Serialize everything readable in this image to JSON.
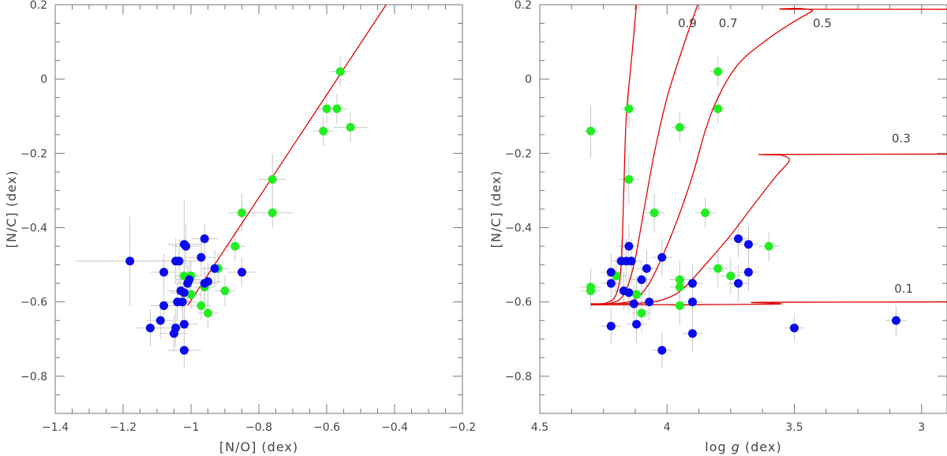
{
  "chart_data": [
    {
      "type": "scatter",
      "name": "left-panel",
      "xlabel": "[N/O] (dex)",
      "ylabel": "[N/C] (dex)",
      "xlim": [
        -1.4,
        -0.2
      ],
      "ylim": [
        -0.9,
        0.2
      ],
      "xticks": [
        -1.4,
        -1.2,
        -1,
        -0.8,
        -0.6,
        -0.4,
        -0.2
      ],
      "xtick_labels": [
        "−1.4",
        "−1.2",
        "−1",
        "−0.8",
        "−0.6",
        "−0.4",
        "−0.2"
      ],
      "yticks": [
        -0.8,
        -0.6,
        -0.4,
        -0.2,
        0,
        0.2
      ],
      "ytick_labels": [
        "−0.8",
        "−0.6",
        "−0.4",
        "−0.2",
        "0",
        "0.2"
      ],
      "fit_line": {
        "x": [
          -1.01,
          -0.425
        ],
        "y": [
          -0.61,
          0.2
        ],
        "color": "#e00000"
      },
      "series": [
        {
          "name": "green",
          "color": "#22ee22",
          "points": [
            {
              "x": -0.56,
              "y": 0.02,
              "xerr": 0.03,
              "yerr": 0.04
            },
            {
              "x": -0.6,
              "y": -0.08,
              "xerr": 0.03,
              "yerr": 0.04
            },
            {
              "x": -0.57,
              "y": -0.08,
              "xerr": 0.03,
              "yerr": 0.04
            },
            {
              "x": -0.53,
              "y": -0.13,
              "xerr": 0.05,
              "yerr": 0.04
            },
            {
              "x": -0.61,
              "y": -0.14,
              "xerr": 0.03,
              "yerr": 0.04
            },
            {
              "x": -0.76,
              "y": -0.27,
              "xerr": 0.04,
              "yerr": 0.07
            },
            {
              "x": -0.85,
              "y": -0.36,
              "xerr": 0.04,
              "yerr": 0.05
            },
            {
              "x": -0.76,
              "y": -0.36,
              "xerr": 0.06,
              "yerr": 0.04
            },
            {
              "x": -0.87,
              "y": -0.45,
              "xerr": 0.03,
              "yerr": 0.04
            },
            {
              "x": -1.02,
              "y": -0.53,
              "xerr": 0.03,
              "yerr": 0.04
            },
            {
              "x": -1.0,
              "y": -0.53,
              "xerr": 0.03,
              "yerr": 0.04
            },
            {
              "x": -0.92,
              "y": -0.51,
              "xerr": 0.03,
              "yerr": 0.04
            },
            {
              "x": -0.96,
              "y": -0.56,
              "xerr": 0.03,
              "yerr": 0.04
            },
            {
              "x": -0.9,
              "y": -0.57,
              "xerr": 0.03,
              "yerr": 0.04
            },
            {
              "x": -1.0,
              "y": -0.58,
              "xerr": 0.03,
              "yerr": 0.04
            },
            {
              "x": -0.97,
              "y": -0.61,
              "xerr": 0.03,
              "yerr": 0.04
            },
            {
              "x": -0.95,
              "y": -0.63,
              "xerr": 0.03,
              "yerr": 0.04
            }
          ]
        },
        {
          "name": "blue",
          "color": "#0a0aee",
          "points": [
            {
              "x": -1.18,
              "y": -0.49,
              "xerr": 0.16,
              "yerr": 0.12
            },
            {
              "x": -1.02,
              "y": -0.445,
              "xerr": 0.05,
              "yerr": 0.12
            },
            {
              "x": -1.015,
              "y": -0.45,
              "xerr": 0.04,
              "yerr": 0.06
            },
            {
              "x": -0.96,
              "y": -0.43,
              "xerr": 0.04,
              "yerr": 0.04
            },
            {
              "x": -1.045,
              "y": -0.49,
              "xerr": 0.06,
              "yerr": 0.06
            },
            {
              "x": -1.035,
              "y": -0.49,
              "xerr": 0.05,
              "yerr": 0.06
            },
            {
              "x": -0.97,
              "y": -0.48,
              "xerr": 0.04,
              "yerr": 0.05
            },
            {
              "x": -1.08,
              "y": -0.52,
              "xerr": 0.04,
              "yerr": 0.05
            },
            {
              "x": -0.93,
              "y": -0.51,
              "xerr": 0.04,
              "yerr": 0.05
            },
            {
              "x": -0.85,
              "y": -0.52,
              "xerr": 0.04,
              "yerr": 0.04
            },
            {
              "x": -1.005,
              "y": -0.54,
              "xerr": 0.04,
              "yerr": 0.05
            },
            {
              "x": -1.01,
              "y": -0.55,
              "xerr": 0.04,
              "yerr": 0.05
            },
            {
              "x": -0.96,
              "y": -0.55,
              "xerr": 0.04,
              "yerr": 0.05
            },
            {
              "x": -0.95,
              "y": -0.545,
              "xerr": 0.04,
              "yerr": 0.05
            },
            {
              "x": -1.03,
              "y": -0.57,
              "xerr": 0.04,
              "yerr": 0.05
            },
            {
              "x": -1.02,
              "y": -0.575,
              "xerr": 0.04,
              "yerr": 0.05
            },
            {
              "x": -1.04,
              "y": -0.6,
              "xerr": 0.04,
              "yerr": 0.05
            },
            {
              "x": -1.025,
              "y": -0.6,
              "xerr": 0.04,
              "yerr": 0.05
            },
            {
              "x": -1.08,
              "y": -0.61,
              "xerr": 0.04,
              "yerr": 0.05
            },
            {
              "x": -1.09,
              "y": -0.65,
              "xerr": 0.04,
              "yerr": 0.05
            },
            {
              "x": -1.12,
              "y": -0.67,
              "xerr": 0.04,
              "yerr": 0.05
            },
            {
              "x": -1.045,
              "y": -0.67,
              "xerr": 0.04,
              "yerr": 0.05
            },
            {
              "x": -1.02,
              "y": -0.66,
              "xerr": 0.04,
              "yerr": 0.05
            },
            {
              "x": -1.05,
              "y": -0.685,
              "xerr": 0.04,
              "yerr": 0.05
            },
            {
              "x": -1.02,
              "y": -0.73,
              "xerr": 0.05,
              "yerr": 0.05
            }
          ]
        }
      ]
    },
    {
      "type": "scatter",
      "name": "right-panel",
      "xlabel_prefix": "log ",
      "xlabel_var": "g",
      "xlabel_suffix": " (dex)",
      "ylabel": "[N/C] (dex)",
      "xlim": [
        4.5,
        2.9
      ],
      "ylim": [
        -0.9,
        0.2
      ],
      "xticks": [
        4.5,
        4,
        3.5,
        3
      ],
      "xtick_labels": [
        "4.5",
        "4",
        "3.5",
        "3"
      ],
      "yticks": [
        -0.8,
        -0.6,
        -0.4,
        -0.2,
        0,
        0.2
      ],
      "ytick_labels": [
        "−0.8",
        "−0.6",
        "−0.4",
        "−0.2",
        "0",
        "0.2"
      ],
      "models": [
        {
          "label": "0.9",
          "label_x": 3.92,
          "label_y": 0.15,
          "color": "#e00000",
          "points": [
            [
              4.3,
              -0.605
            ],
            [
              4.24,
              -0.603
            ],
            [
              4.2,
              -0.58
            ],
            [
              4.18,
              -0.5
            ],
            [
              4.17,
              -0.3
            ],
            [
              4.16,
              -0.1
            ],
            [
              4.14,
              0.05
            ],
            [
              4.12,
              0.2
            ]
          ]
        },
        {
          "label": "0.7",
          "label_x": 3.76,
          "label_y": 0.15,
          "color": "#e00000",
          "points": [
            [
              4.3,
              -0.605
            ],
            [
              4.22,
              -0.603
            ],
            [
              4.17,
              -0.58
            ],
            [
              4.13,
              -0.5
            ],
            [
              4.09,
              -0.35
            ],
            [
              4.05,
              -0.2
            ],
            [
              4.0,
              -0.05
            ],
            [
              3.94,
              0.08
            ],
            [
              3.88,
              0.2
            ]
          ]
        },
        {
          "label": "0.5",
          "label_x": 3.39,
          "label_y": 0.15,
          "color": "#e00000",
          "points": [
            [
              4.3,
              -0.605
            ],
            [
              4.18,
              -0.603
            ],
            [
              4.12,
              -0.59
            ],
            [
              4.07,
              -0.55
            ],
            [
              4.02,
              -0.48
            ],
            [
              3.96,
              -0.38
            ],
            [
              3.9,
              -0.26
            ],
            [
              3.85,
              -0.14
            ],
            [
              3.8,
              -0.05
            ],
            [
              3.72,
              0.04
            ],
            [
              3.6,
              0.11
            ],
            [
              3.5,
              0.155
            ],
            [
              3.45,
              0.175
            ],
            [
              3.43,
              0.185
            ],
            [
              3.48,
              0.19
            ],
            [
              3.52,
              0.188
            ],
            [
              2.9,
              0.188
            ]
          ]
        },
        {
          "label": "0.3",
          "label_x": 3.08,
          "label_y": -0.16,
          "color": "#e00000",
          "points": [
            [
              4.3,
              -0.605
            ],
            [
              4.1,
              -0.603
            ],
            [
              4.0,
              -0.59
            ],
            [
              3.93,
              -0.56
            ],
            [
              3.85,
              -0.5
            ],
            [
              3.75,
              -0.42
            ],
            [
              3.65,
              -0.33
            ],
            [
              3.57,
              -0.26
            ],
            [
              3.53,
              -0.23
            ],
            [
              3.52,
              -0.215
            ],
            [
              3.55,
              -0.205
            ],
            [
              3.6,
              -0.203
            ],
            [
              2.9,
              -0.202
            ]
          ]
        },
        {
          "label": "0.1",
          "label_x": 3.07,
          "label_y": -0.565,
          "color": "#e00000",
          "points": [
            [
              4.3,
              -0.608
            ],
            [
              3.8,
              -0.607
            ],
            [
              3.6,
              -0.606
            ],
            [
              3.55,
              -0.605
            ],
            [
              3.6,
              -0.603
            ],
            [
              3.62,
              -0.601
            ],
            [
              2.9,
              -0.6
            ]
          ]
        }
      ],
      "series": [
        {
          "name": "green",
          "color": "#22ee22",
          "points": [
            {
              "x": 4.3,
              "y": -0.14,
              "xerr": 0.03,
              "yerr": 0.07
            },
            {
              "x": 4.15,
              "y": -0.08,
              "xerr": 0.03,
              "yerr": 0.05
            },
            {
              "x": 3.8,
              "y": 0.02,
              "xerr": 0.03,
              "yerr": 0.04
            },
            {
              "x": 3.8,
              "y": -0.08,
              "xerr": 0.03,
              "yerr": 0.04
            },
            {
              "x": 3.95,
              "y": -0.13,
              "xerr": 0.03,
              "yerr": 0.04
            },
            {
              "x": 4.15,
              "y": -0.27,
              "xerr": 0.04,
              "yerr": 0.07
            },
            {
              "x": 4.05,
              "y": -0.36,
              "xerr": 0.04,
              "yerr": 0.05
            },
            {
              "x": 3.85,
              "y": -0.36,
              "xerr": 0.04,
              "yerr": 0.04
            },
            {
              "x": 3.6,
              "y": -0.45,
              "xerr": 0.04,
              "yerr": 0.04
            },
            {
              "x": 3.8,
              "y": -0.51,
              "xerr": 0.04,
              "yerr": 0.05
            },
            {
              "x": 3.75,
              "y": -0.53,
              "xerr": 0.04,
              "yerr": 0.05
            },
            {
              "x": 4.3,
              "y": -0.56,
              "xerr": 0.04,
              "yerr": 0.05
            },
            {
              "x": 4.3,
              "y": -0.57,
              "xerr": 0.04,
              "yerr": 0.05
            },
            {
              "x": 4.2,
              "y": -0.53,
              "xerr": 0.04,
              "yerr": 0.05
            },
            {
              "x": 3.95,
              "y": -0.54,
              "xerr": 0.04,
              "yerr": 0.05
            },
            {
              "x": 3.95,
              "y": -0.56,
              "xerr": 0.04,
              "yerr": 0.05
            },
            {
              "x": 4.12,
              "y": -0.58,
              "xerr": 0.04,
              "yerr": 0.05
            },
            {
              "x": 3.95,
              "y": -0.61,
              "xerr": 0.04,
              "yerr": 0.05
            },
            {
              "x": 4.1,
              "y": -0.63,
              "xerr": 0.04,
              "yerr": 0.05
            }
          ]
        },
        {
          "name": "blue",
          "color": "#0a0aee",
          "points": [
            {
              "x": 4.15,
              "y": -0.45,
              "xerr": 0.04,
              "yerr": 0.06
            },
            {
              "x": 4.18,
              "y": -0.49,
              "xerr": 0.04,
              "yerr": 0.06
            },
            {
              "x": 4.16,
              "y": -0.49,
              "xerr": 0.04,
              "yerr": 0.06
            },
            {
              "x": 4.14,
              "y": -0.49,
              "xerr": 0.04,
              "yerr": 0.06
            },
            {
              "x": 4.22,
              "y": -0.52,
              "xerr": 0.04,
              "yerr": 0.05
            },
            {
              "x": 4.08,
              "y": -0.51,
              "xerr": 0.04,
              "yerr": 0.05
            },
            {
              "x": 4.02,
              "y": -0.48,
              "xerr": 0.04,
              "yerr": 0.05
            },
            {
              "x": 4.22,
              "y": -0.55,
              "xerr": 0.04,
              "yerr": 0.05
            },
            {
              "x": 4.1,
              "y": -0.54,
              "xerr": 0.04,
              "yerr": 0.05
            },
            {
              "x": 3.9,
              "y": -0.55,
              "xerr": 0.04,
              "yerr": 0.05
            },
            {
              "x": 3.72,
              "y": -0.43,
              "xerr": 0.04,
              "yerr": 0.05
            },
            {
              "x": 3.68,
              "y": -0.445,
              "xerr": 0.04,
              "yerr": 0.05
            },
            {
              "x": 3.68,
              "y": -0.52,
              "xerr": 0.04,
              "yerr": 0.05
            },
            {
              "x": 3.72,
              "y": -0.55,
              "xerr": 0.04,
              "yerr": 0.05
            },
            {
              "x": 4.17,
              "y": -0.57,
              "xerr": 0.04,
              "yerr": 0.05
            },
            {
              "x": 4.15,
              "y": -0.575,
              "xerr": 0.04,
              "yerr": 0.05
            },
            {
              "x": 4.13,
              "y": -0.605,
              "xerr": 0.04,
              "yerr": 0.05
            },
            {
              "x": 4.07,
              "y": -0.6,
              "xerr": 0.04,
              "yerr": 0.05
            },
            {
              "x": 3.9,
              "y": -0.6,
              "xerr": 0.04,
              "yerr": 0.05
            },
            {
              "x": 4.12,
              "y": -0.66,
              "xerr": 0.04,
              "yerr": 0.05
            },
            {
              "x": 4.22,
              "y": -0.665,
              "xerr": 0.04,
              "yerr": 0.05
            },
            {
              "x": 3.9,
              "y": -0.685,
              "xerr": 0.04,
              "yerr": 0.05
            },
            {
              "x": 4.02,
              "y": -0.73,
              "xerr": 0.04,
              "yerr": 0.05
            },
            {
              "x": 3.5,
              "y": -0.67,
              "xerr": 0.04,
              "yerr": 0.04
            },
            {
              "x": 3.1,
              "y": -0.65,
              "xerr": 0.04,
              "yerr": 0.04
            }
          ]
        }
      ]
    }
  ]
}
